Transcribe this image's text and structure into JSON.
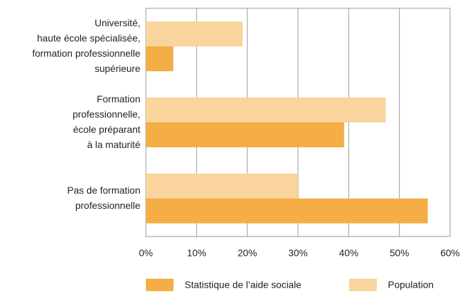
{
  "chart_data": {
    "type": "bar",
    "orientation": "horizontal",
    "categories": [
      "Université,\nhaute école spécialisée,\nformation professionnelle\nsupérieure",
      "Formation\nprofessionnelle,\nécole préparant\nà la maturité",
      "Pas de formation\nprofessionnelle"
    ],
    "series": [
      {
        "name": "Statistique de l’aide sociale",
        "color": "#f5ae45",
        "values": [
          5.4,
          39.1,
          55.6
        ]
      },
      {
        "name": "Population",
        "color": "#f9d49c",
        "values": [
          19.1,
          47.3,
          30.0
        ]
      }
    ],
    "xlim": [
      0,
      60
    ],
    "xticks": [
      {
        "value": 0,
        "label": "0%"
      },
      {
        "value": 10,
        "label": "10%"
      },
      {
        "value": 20,
        "label": "20%"
      },
      {
        "value": 30,
        "label": "30%"
      },
      {
        "value": 40,
        "label": "40%"
      },
      {
        "value": 50,
        "label": "50%"
      },
      {
        "value": 60,
        "label": "60%"
      }
    ],
    "grid": true,
    "legend": "bottom"
  }
}
